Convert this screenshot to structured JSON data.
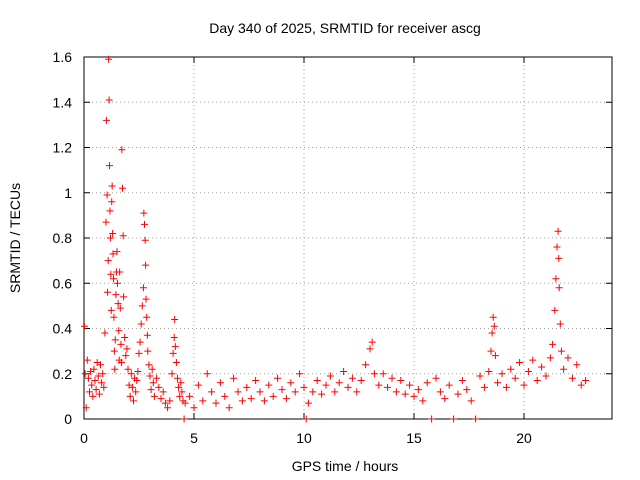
{
  "chart_data": {
    "type": "scatter",
    "title": "Day 340 of 2025, SRMTID for receiver ascg",
    "xlabel": "GPS time / hours",
    "ylabel": "SRMTID / TECUs",
    "xlim": [
      0,
      24
    ],
    "ylim": [
      0,
      1.6
    ],
    "xticks": [
      0,
      5,
      10,
      15,
      20
    ],
    "xtick_labels": [
      "0",
      "5",
      "10",
      "15",
      "20"
    ],
    "yticks": [
      0,
      0.2,
      0.4,
      0.6,
      0.8,
      1.0,
      1.2,
      1.4,
      1.6
    ],
    "ytick_labels": [
      "0",
      "0.2",
      "0.4",
      "0.6",
      "0.8",
      "1",
      "1.2",
      "1.4",
      "1.6"
    ],
    "grid": true,
    "marker": "+",
    "marker_color": "#ff0000",
    "series": [
      {
        "name": "SRMTID",
        "points": [
          [
            0.02,
            0.41
          ],
          [
            0.05,
            0.2
          ],
          [
            0.1,
            0.05
          ],
          [
            0.15,
            0.26
          ],
          [
            0.2,
            0.18
          ],
          [
            0.25,
            0.12
          ],
          [
            0.3,
            0.21
          ],
          [
            0.35,
            0.15
          ],
          [
            0.4,
            0.1
          ],
          [
            0.45,
            0.22
          ],
          [
            0.5,
            0.17
          ],
          [
            0.55,
            0.13
          ],
          [
            0.6,
            0.25
          ],
          [
            0.65,
            0.19
          ],
          [
            0.7,
            0.11
          ],
          [
            0.75,
            0.24
          ],
          [
            0.8,
            0.16
          ],
          [
            0.85,
            0.2
          ],
          [
            0.9,
            0.14
          ],
          [
            0.95,
            0.38
          ],
          [
            1.0,
            0.87
          ],
          [
            1.02,
            1.32
          ],
          [
            1.05,
            0.99
          ],
          [
            1.07,
            0.56
          ],
          [
            1.1,
            0.7
          ],
          [
            1.12,
            1.59
          ],
          [
            1.14,
            1.41
          ],
          [
            1.16,
            1.12
          ],
          [
            1.18,
            0.92
          ],
          [
            1.2,
            0.8
          ],
          [
            1.22,
            0.64
          ],
          [
            1.24,
            0.48
          ],
          [
            1.26,
            0.96
          ],
          [
            1.28,
            1.03
          ],
          [
            1.3,
            0.82
          ],
          [
            1.32,
            0.73
          ],
          [
            1.34,
            0.62
          ],
          [
            1.36,
            0.45
          ],
          [
            1.38,
            0.3
          ],
          [
            1.4,
            0.22
          ],
          [
            1.42,
            0.35
          ],
          [
            1.45,
            0.55
          ],
          [
            1.48,
            0.65
          ],
          [
            1.5,
            0.74
          ],
          [
            1.52,
            0.6
          ],
          [
            1.55,
            0.51
          ],
          [
            1.58,
            0.39
          ],
          [
            1.6,
            0.26
          ],
          [
            1.62,
            0.65
          ],
          [
            1.65,
            0.49
          ],
          [
            1.68,
            0.33
          ],
          [
            1.7,
            0.25
          ],
          [
            1.72,
            1.19
          ],
          [
            1.75,
            1.02
          ],
          [
            1.78,
            0.81
          ],
          [
            1.8,
            0.54
          ],
          [
            1.85,
            0.36
          ],
          [
            1.9,
            0.28
          ],
          [
            1.95,
            0.31
          ],
          [
            2.0,
            0.22
          ],
          [
            2.05,
            0.15
          ],
          [
            2.1,
            0.1
          ],
          [
            2.15,
            0.2
          ],
          [
            2.2,
            0.14
          ],
          [
            2.25,
            0.08
          ],
          [
            2.3,
            0.18
          ],
          [
            2.35,
            0.12
          ],
          [
            2.4,
            0.17
          ],
          [
            2.45,
            0.21
          ],
          [
            2.5,
            0.29
          ],
          [
            2.55,
            0.34
          ],
          [
            2.6,
            0.42
          ],
          [
            2.65,
            0.5
          ],
          [
            2.7,
            0.58
          ],
          [
            2.72,
            0.91
          ],
          [
            2.75,
            0.86
          ],
          [
            2.78,
            0.79
          ],
          [
            2.8,
            0.68
          ],
          [
            2.82,
            0.53
          ],
          [
            2.85,
            0.45
          ],
          [
            2.88,
            0.37
          ],
          [
            2.9,
            0.3
          ],
          [
            2.95,
            0.24
          ],
          [
            3.0,
            0.19
          ],
          [
            3.05,
            0.13
          ],
          [
            3.1,
            0.22
          ],
          [
            3.15,
            0.16
          ],
          [
            3.2,
            0.1
          ],
          [
            3.3,
            0.18
          ],
          [
            3.4,
            0.14
          ],
          [
            3.5,
            0.09
          ],
          [
            3.6,
            0.12
          ],
          [
            3.7,
            0.07
          ],
          [
            3.8,
            0.05
          ],
          [
            3.9,
            0.08
          ],
          [
            4.0,
            0.2
          ],
          [
            4.05,
            0.29
          ],
          [
            4.1,
            0.36
          ],
          [
            4.12,
            0.44
          ],
          [
            4.15,
            0.32
          ],
          [
            4.2,
            0.25
          ],
          [
            4.25,
            0.18
          ],
          [
            4.3,
            0.14
          ],
          [
            4.35,
            0.1
          ],
          [
            4.4,
            0.16
          ],
          [
            4.45,
            0.12
          ],
          [
            4.5,
            0.08
          ],
          [
            4.55,
            0.0
          ],
          [
            4.6,
            0.07
          ],
          [
            4.8,
            0.1
          ],
          [
            5.0,
            0.05
          ],
          [
            5.2,
            0.15
          ],
          [
            5.4,
            0.08
          ],
          [
            5.6,
            0.2
          ],
          [
            5.8,
            0.12
          ],
          [
            6.0,
            0.07
          ],
          [
            6.2,
            0.16
          ],
          [
            6.4,
            0.1
          ],
          [
            6.6,
            0.05
          ],
          [
            6.8,
            0.18
          ],
          [
            7.0,
            0.12
          ],
          [
            7.2,
            0.08
          ],
          [
            7.4,
            0.14
          ],
          [
            7.6,
            0.09
          ],
          [
            7.8,
            0.17
          ],
          [
            8.0,
            0.12
          ],
          [
            8.2,
            0.08
          ],
          [
            8.4,
            0.15
          ],
          [
            8.6,
            0.1
          ],
          [
            8.8,
            0.18
          ],
          [
            9.0,
            0.13
          ],
          [
            9.2,
            0.09
          ],
          [
            9.4,
            0.16
          ],
          [
            9.6,
            0.12
          ],
          [
            9.8,
            0.2
          ],
          [
            10.0,
            0.14
          ],
          [
            10.1,
            0.0
          ],
          [
            10.2,
            0.07
          ],
          [
            10.4,
            0.12
          ],
          [
            10.6,
            0.17
          ],
          [
            10.8,
            0.11
          ],
          [
            11.0,
            0.15
          ],
          [
            11.2,
            0.19
          ],
          [
            11.4,
            0.12
          ],
          [
            11.6,
            0.16
          ],
          [
            11.8,
            0.21
          ],
          [
            12.0,
            0.14
          ],
          [
            12.2,
            0.18
          ],
          [
            12.4,
            0.12
          ],
          [
            12.6,
            0.17
          ],
          [
            12.8,
            0.24
          ],
          [
            13.0,
            0.31
          ],
          [
            13.1,
            0.34
          ],
          [
            13.2,
            0.2
          ],
          [
            13.4,
            0.15
          ],
          [
            13.6,
            0.2
          ],
          [
            13.8,
            0.14
          ],
          [
            14.0,
            0.18
          ],
          [
            14.2,
            0.12
          ],
          [
            14.4,
            0.17
          ],
          [
            14.6,
            0.11
          ],
          [
            14.8,
            0.15
          ],
          [
            15.0,
            0.1
          ],
          [
            15.2,
            0.13
          ],
          [
            15.4,
            0.08
          ],
          [
            15.6,
            0.16
          ],
          [
            15.8,
            0.0
          ],
          [
            16.0,
            0.18
          ],
          [
            16.2,
            0.12
          ],
          [
            16.4,
            0.09
          ],
          [
            16.6,
            0.15
          ],
          [
            16.8,
            0.0
          ],
          [
            17.0,
            0.11
          ],
          [
            17.2,
            0.17
          ],
          [
            17.4,
            0.13
          ],
          [
            17.6,
            0.08
          ],
          [
            17.8,
            0.0
          ],
          [
            18.0,
            0.19
          ],
          [
            18.2,
            0.14
          ],
          [
            18.4,
            0.21
          ],
          [
            18.5,
            0.3
          ],
          [
            18.55,
            0.38
          ],
          [
            18.6,
            0.45
          ],
          [
            18.65,
            0.41
          ],
          [
            18.7,
            0.28
          ],
          [
            18.8,
            0.16
          ],
          [
            19.0,
            0.2
          ],
          [
            19.2,
            0.14
          ],
          [
            19.4,
            0.22
          ],
          [
            19.6,
            0.18
          ],
          [
            19.8,
            0.25
          ],
          [
            20.0,
            0.15
          ],
          [
            20.2,
            0.21
          ],
          [
            20.4,
            0.26
          ],
          [
            20.6,
            0.17
          ],
          [
            20.8,
            0.23
          ],
          [
            21.0,
            0.19
          ],
          [
            21.2,
            0.27
          ],
          [
            21.3,
            0.33
          ],
          [
            21.4,
            0.48
          ],
          [
            21.45,
            0.62
          ],
          [
            21.5,
            0.76
          ],
          [
            21.55,
            0.83
          ],
          [
            21.58,
            0.71
          ],
          [
            21.6,
            0.58
          ],
          [
            21.65,
            0.42
          ],
          [
            21.7,
            0.3
          ],
          [
            21.8,
            0.22
          ],
          [
            22.0,
            0.27
          ],
          [
            22.2,
            0.18
          ],
          [
            22.4,
            0.24
          ],
          [
            22.6,
            0.15
          ],
          [
            22.8,
            0.17
          ]
        ]
      }
    ]
  }
}
